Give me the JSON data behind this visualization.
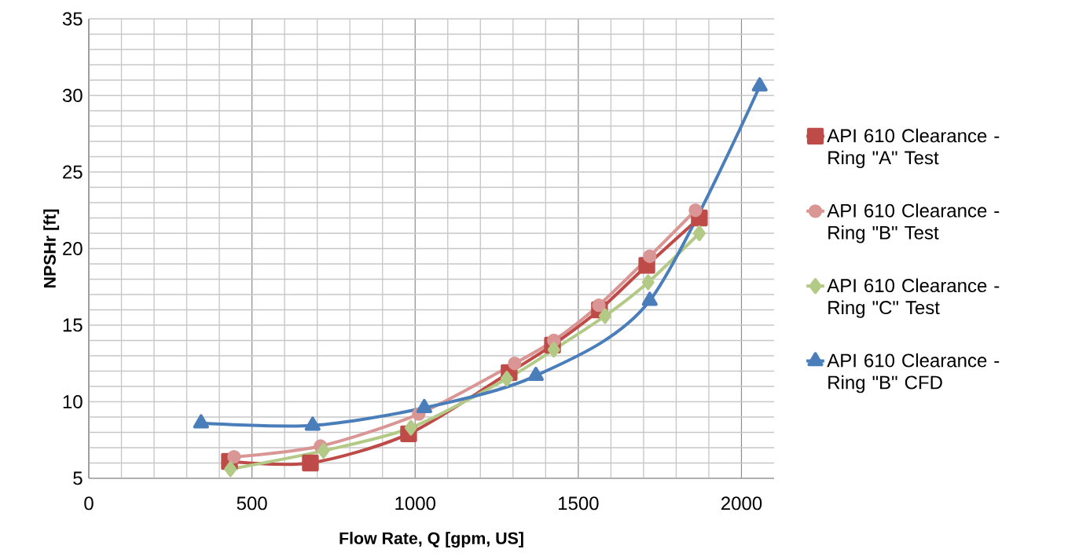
{
  "chart_data": {
    "type": "line",
    "xlabel": "Flow Rate, Q [gpm, US]",
    "ylabel": "NPSHr [ft]",
    "xlim": [
      0,
      2100
    ],
    "xticks": [
      0,
      500,
      1000,
      1500,
      2000
    ],
    "ylim": [
      5,
      35
    ],
    "yticks": [
      5,
      10,
      15,
      20,
      25,
      30,
      35
    ],
    "grid": true,
    "legend": "right",
    "line_style": "solid",
    "series": [
      {
        "name": "API 610 Clearance - Ring \"A\" Test",
        "color": "#be4b48",
        "marker": "square",
        "x": [
          431,
          679,
          980,
          1288,
          1421,
          1565,
          1710,
          1871
        ],
        "values": [
          6.1,
          6.0,
          7.9,
          11.9,
          13.7,
          16.0,
          18.9,
          22.0
        ]
      },
      {
        "name": "API 610 Clearance - Ring \"B\" Test",
        "color": "#d99694",
        "marker": "circle",
        "x": [
          445,
          710,
          1011,
          1305,
          1425,
          1563,
          1719,
          1859
        ],
        "values": [
          6.4,
          7.1,
          9.2,
          12.5,
          14.0,
          16.3,
          19.5,
          22.5
        ]
      },
      {
        "name": "API 610 Clearance - Ring \"C\" Test",
        "color": "#b3c986",
        "marker": "diamond",
        "x": [
          434,
          719,
          987,
          1281,
          1425,
          1582,
          1714,
          1871
        ],
        "values": [
          5.6,
          6.8,
          8.3,
          11.5,
          13.4,
          15.6,
          17.8,
          21.0
        ]
      },
      {
        "name": "API 610 Clearance    - Ring \"B\" CFD",
        "color": "#4a7ebb",
        "marker": "triangle",
        "x": [
          344,
          686,
          1028,
          1370,
          1719,
          2056
        ],
        "values": [
          8.6,
          8.45,
          9.6,
          11.7,
          16.6,
          30.6
        ]
      }
    ]
  }
}
